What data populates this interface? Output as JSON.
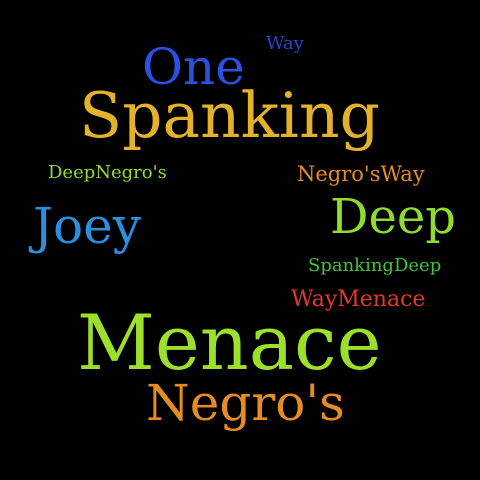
{
  "background": "#000000",
  "words": [
    {
      "text": "Way",
      "color": "#2747c8"
    },
    {
      "text": "One",
      "color": "#2a50e4"
    },
    {
      "text": "Spanking",
      "color": "#e4b12a"
    },
    {
      "text": "DeepNegro's",
      "color": "#8fdc2c"
    },
    {
      "text": "Negro'sWay",
      "color": "#e58c23"
    },
    {
      "text": "Joey",
      "color": "#2b8fe0"
    },
    {
      "text": "Deep",
      "color": "#8fdc2c"
    },
    {
      "text": "SpankingDeep",
      "color": "#3fc43a"
    },
    {
      "text": "WayMenace",
      "color": "#e03a2a"
    },
    {
      "text": "Menace",
      "color": "#9ce02c"
    },
    {
      "text": "Negro's",
      "color": "#e58c23"
    }
  ]
}
